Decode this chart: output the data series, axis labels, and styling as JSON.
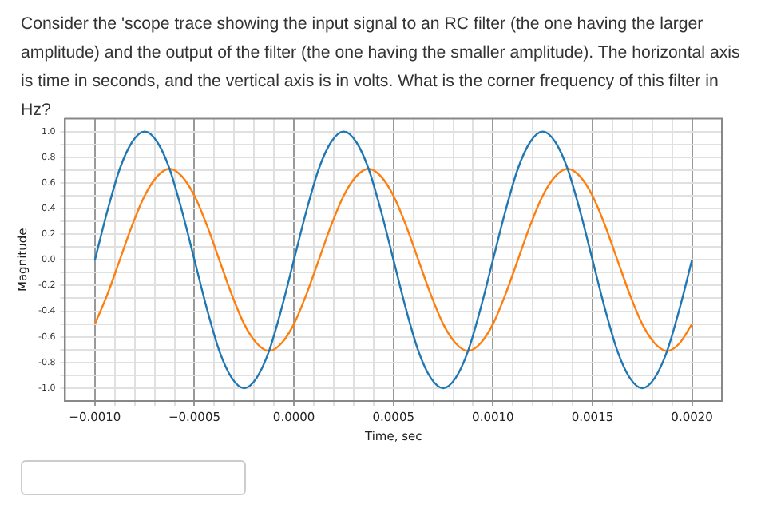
{
  "chart_data": {
    "type": "line",
    "title": "Consider the 'scope trace showing the input signal to an RC filter (the one having the larger amplitude) and the output of the filter (the one having the smaller amplitude). The horizontal axis is time in seconds, and the vertical axis is in volts. What is the corner frequency of this filter in Hz?",
    "xlabel": "Time, sec",
    "ylabel": "Magnitude",
    "x": [
      -0.001,
      -0.0009375,
      -0.000875,
      -0.0008125,
      -0.00075,
      -0.0006875,
      -0.000625,
      -0.0005625,
      -0.0005,
      -0.0004375,
      -0.000375,
      -0.0003125,
      -0.00025,
      -0.0001875,
      -0.000125,
      -6.25e-05,
      0,
      6.25e-05,
      0.000125,
      0.0001875,
      0.00025,
      0.0003125,
      0.000375,
      0.0004375,
      0.0005,
      0.0005625,
      0.000625,
      0.0006875,
      0.00075,
      0.0008125,
      0.000875,
      0.0009375,
      0.001,
      0.0010625,
      0.001125,
      0.0011875,
      0.00125,
      0.0013125,
      0.001375,
      0.0014375,
      0.0015,
      0.0015625,
      0.001625,
      0.0016875,
      0.00175,
      0.0018125,
      0.001875,
      0.0019375,
      0.002
    ],
    "series": [
      {
        "color": "#1f77b4",
        "values": [
          0,
          0.38,
          0.71,
          0.92,
          1,
          0.92,
          0.71,
          0.38,
          0,
          -0.38,
          -0.71,
          -0.92,
          -1,
          -0.92,
          -0.71,
          -0.38,
          0,
          0.38,
          0.71,
          0.92,
          1,
          0.92,
          0.71,
          0.38,
          0,
          -0.38,
          -0.71,
          -0.92,
          -1,
          -0.92,
          -0.71,
          -0.38,
          0,
          0.38,
          0.71,
          0.92,
          1,
          0.92,
          0.71,
          0.38,
          0,
          -0.38,
          -0.71,
          -0.92,
          -1,
          -0.92,
          -0.71,
          -0.38,
          0
        ]
      },
      {
        "color": "#ff7f0e",
        "values": [
          -0.5,
          -0.27,
          0,
          0.27,
          0.5,
          0.65,
          0.71,
          0.65,
          0.5,
          0.27,
          0,
          -0.27,
          -0.5,
          -0.65,
          -0.71,
          -0.65,
          -0.5,
          -0.27,
          0,
          0.27,
          0.5,
          0.65,
          0.71,
          0.65,
          0.5,
          0.27,
          0,
          -0.27,
          -0.5,
          -0.65,
          -0.71,
          -0.65,
          -0.5,
          -0.27,
          0,
          0.27,
          0.5,
          0.65,
          0.71,
          0.65,
          0.5,
          0.27,
          0,
          -0.27,
          -0.5,
          -0.65,
          -0.71,
          -0.65,
          -0.5
        ]
      }
    ],
    "xlim": [
      -0.00115,
      0.00215
    ],
    "xticks": [
      {
        "value": -0.001,
        "label": "−0.0010"
      },
      {
        "value": -0.0009,
        "label": null
      },
      {
        "value": -0.0008,
        "label": null
      },
      {
        "value": -0.0007,
        "label": null
      },
      {
        "value": -0.0006,
        "label": null
      },
      {
        "value": -0.0005,
        "label": "−0.0005"
      },
      {
        "value": -0.0004,
        "label": null
      },
      {
        "value": -0.0003,
        "label": null
      },
      {
        "value": -0.0002,
        "label": null
      },
      {
        "value": -0.0001,
        "label": null
      },
      {
        "value": 0,
        "label": "0.0000"
      },
      {
        "value": 0.0001,
        "label": null
      },
      {
        "value": 0.0002,
        "label": null
      },
      {
        "value": 0.0003,
        "label": null
      },
      {
        "value": 0.0004,
        "label": null
      },
      {
        "value": 0.0005,
        "label": "0.0005"
      },
      {
        "value": 0.0006,
        "label": null
      },
      {
        "value": 0.0007,
        "label": null
      },
      {
        "value": 0.0008,
        "label": null
      },
      {
        "value": 0.0009,
        "label": null
      },
      {
        "value": 0.001,
        "label": "0.0010"
      },
      {
        "value": 0.0011,
        "label": null
      },
      {
        "value": 0.0012,
        "label": null
      },
      {
        "value": 0.0013,
        "label": null
      },
      {
        "value": 0.0014,
        "label": null
      },
      {
        "value": 0.0015,
        "label": "0.0015"
      },
      {
        "value": 0.0016,
        "label": null
      },
      {
        "value": 0.0017,
        "label": null
      },
      {
        "value": 0.0018,
        "label": null
      },
      {
        "value": 0.0019,
        "label": null
      },
      {
        "value": 0.002,
        "label": "0.0020"
      }
    ],
    "ylim": [
      -1.1,
      1.1
    ],
    "yticks": [
      {
        "value": -1,
        "label": "-1.0"
      },
      {
        "value": -0.9,
        "label": null
      },
      {
        "value": -0.8,
        "label": "-0.8"
      },
      {
        "value": -0.7,
        "label": null
      },
      {
        "value": -0.6,
        "label": "-0.6"
      },
      {
        "value": -0.5,
        "label": null
      },
      {
        "value": -0.4,
        "label": "-0.4"
      },
      {
        "value": -0.3,
        "label": null
      },
      {
        "value": -0.2,
        "label": "-0.2"
      },
      {
        "value": -0.1,
        "label": null
      },
      {
        "value": 0,
        "label": "0.0"
      },
      {
        "value": 0.1,
        "label": null
      },
      {
        "value": 0.2,
        "label": "0.2"
      },
      {
        "value": 0.3,
        "label": null
      },
      {
        "value": 0.4,
        "label": "0.4"
      },
      {
        "value": 0.5,
        "label": null
      },
      {
        "value": 0.6,
        "label": "0.6"
      },
      {
        "value": 0.7,
        "label": null
      },
      {
        "value": 0.8,
        "label": "0.8"
      },
      {
        "value": 0.9,
        "label": null
      },
      {
        "value": 1,
        "label": "1.0"
      }
    ],
    "grid": true,
    "marker": "none",
    "line_style": "solid"
  }
}
